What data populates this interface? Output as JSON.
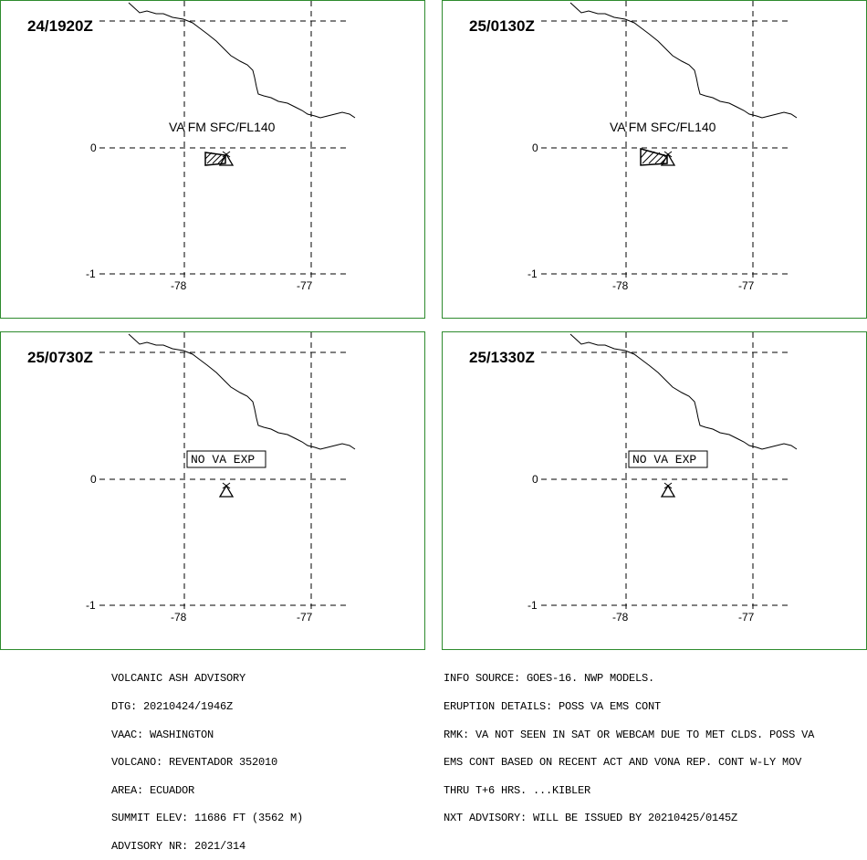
{
  "panels": [
    {
      "id": "p1",
      "time": "24/1920Z",
      "va_text": "VA FM SFC/FL140",
      "has_ash": true
    },
    {
      "id": "p2",
      "time": "25/0130Z",
      "va_text": "VA FM SFC/FL140",
      "has_ash": true
    },
    {
      "id": "p3",
      "time": "25/0730Z",
      "va_text": "NO VA EXP",
      "has_ash": false
    },
    {
      "id": "p4",
      "time": "25/1330Z",
      "va_text": "NO VA EXP",
      "has_ash": false
    }
  ],
  "axes": {
    "lon_ticks": [
      "-78",
      "-77"
    ],
    "lat_ticks": [
      "0",
      "-1"
    ]
  },
  "advisory_left": [
    "VOLCANIC ASH ADVISORY",
    "DTG: 20210424/1946Z",
    "VAAC: WASHINGTON",
    "VOLCANO: REVENTADOR 352010",
    "AREA: ECUADOR",
    "SUMMIT ELEV: 11686 FT (3562 M)",
    "ADVISORY NR: 2021/314"
  ],
  "advisory_right": [
    "INFO SOURCE: GOES-16. NWP MODELS.",
    "ERUPTION DETAILS: POSS VA EMS CONT",
    "RMK: VA NOT SEEN IN SAT OR WEBCAM DUE TO MET CLDS. POSS VA",
    "EMS CONT BASED ON RECENT ACT AND VONA REP. CONT W-LY MOV",
    "THRU T+6 HRS. ...KIBLER",
    "NXT ADVISORY: WILL BE ISSUED BY 20210425/0145Z"
  ]
}
